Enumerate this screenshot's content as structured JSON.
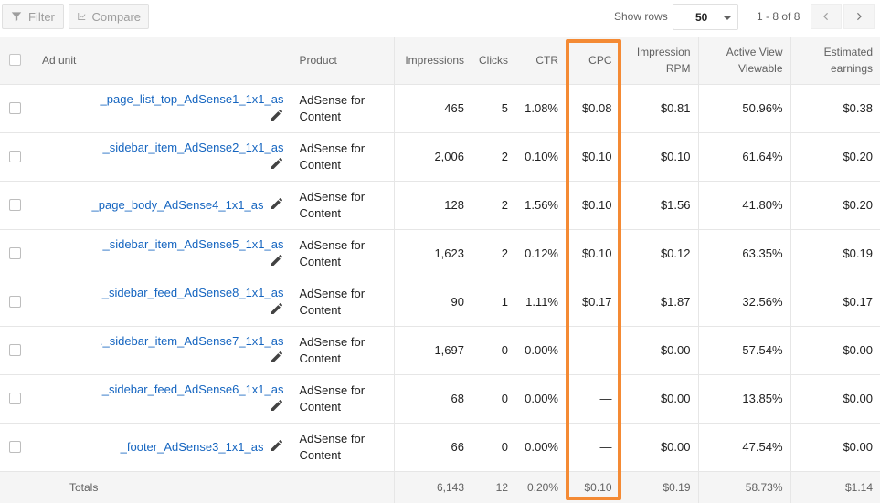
{
  "toolbar": {
    "filter_label": "Filter",
    "compare_label": "Compare",
    "show_rows_label": "Show rows",
    "rows_value": "50",
    "page_info": "1 - 8 of 8"
  },
  "columns": {
    "ad_unit": "Ad unit",
    "product": "Product",
    "impressions": "Impressions",
    "clicks": "Clicks",
    "ctr": "CTR",
    "cpc": "CPC",
    "rpm_1": "Impression",
    "rpm_2": "RPM",
    "av_1": "Active View",
    "av_2": "Viewable",
    "earn_1": "Estimated",
    "earn_2": "earnings"
  },
  "rows": [
    {
      "ad_unit": "_page_list_top_AdSense1_1x1_as",
      "product_1": "AdSense for",
      "product_2": "Content",
      "impressions": "465",
      "clicks": "5",
      "ctr": "1.08%",
      "cpc": "$0.08",
      "rpm": "$0.81",
      "viewable": "50.96%",
      "earnings": "$0.38"
    },
    {
      "ad_unit": "_sidebar_item_AdSense2_1x1_as",
      "product_1": "AdSense for",
      "product_2": "Content",
      "impressions": "2,006",
      "clicks": "2",
      "ctr": "0.10%",
      "cpc": "$0.10",
      "rpm": "$0.10",
      "viewable": "61.64%",
      "earnings": "$0.20"
    },
    {
      "ad_unit": "_page_body_AdSense4_1x1_as",
      "product_1": "AdSense for",
      "product_2": "Content",
      "impressions": "128",
      "clicks": "2",
      "ctr": "1.56%",
      "cpc": "$0.10",
      "rpm": "$1.56",
      "viewable": "41.80%",
      "earnings": "$0.20"
    },
    {
      "ad_unit": "_sidebar_item_AdSense5_1x1_as",
      "product_1": "AdSense for",
      "product_2": "Content",
      "impressions": "1,623",
      "clicks": "2",
      "ctr": "0.12%",
      "cpc": "$0.10",
      "rpm": "$0.12",
      "viewable": "63.35%",
      "earnings": "$0.19"
    },
    {
      "ad_unit": "_sidebar_feed_AdSense8_1x1_as",
      "product_1": "AdSense for",
      "product_2": "Content",
      "impressions": "90",
      "clicks": "1",
      "ctr": "1.11%",
      "cpc": "$0.17",
      "rpm": "$1.87",
      "viewable": "32.56%",
      "earnings": "$0.17"
    },
    {
      "ad_unit": "._sidebar_item_AdSense7_1x1_as",
      "product_1": "AdSense for",
      "product_2": "Content",
      "impressions": "1,697",
      "clicks": "0",
      "ctr": "0.00%",
      "cpc": "—",
      "rpm": "$0.00",
      "viewable": "57.54%",
      "earnings": "$0.00"
    },
    {
      "ad_unit": "_sidebar_feed_AdSense6_1x1_as",
      "product_1": "AdSense for",
      "product_2": "Content",
      "impressions": "68",
      "clicks": "0",
      "ctr": "0.00%",
      "cpc": "—",
      "rpm": "$0.00",
      "viewable": "13.85%",
      "earnings": "$0.00"
    },
    {
      "ad_unit": "_footer_AdSense3_1x1_as",
      "product_1": "AdSense for",
      "product_2": "Content",
      "impressions": "66",
      "clicks": "0",
      "ctr": "0.00%",
      "cpc": "—",
      "rpm": "$0.00",
      "viewable": "47.54%",
      "earnings": "$0.00"
    }
  ],
  "totals": {
    "label": "Totals",
    "impressions": "6,143",
    "clicks": "12",
    "ctr": "0.20%",
    "cpc": "$0.10",
    "rpm": "$0.19",
    "viewable": "58.73%",
    "earnings": "$1.14"
  },
  "colors": {
    "link": "#1565c0",
    "highlight": "#f48a34"
  },
  "icons": {
    "filter": "filter-icon",
    "compare": "compare-icon",
    "edit": "pencil-icon",
    "prev": "chevron-left-icon",
    "next": "chevron-right-icon"
  }
}
